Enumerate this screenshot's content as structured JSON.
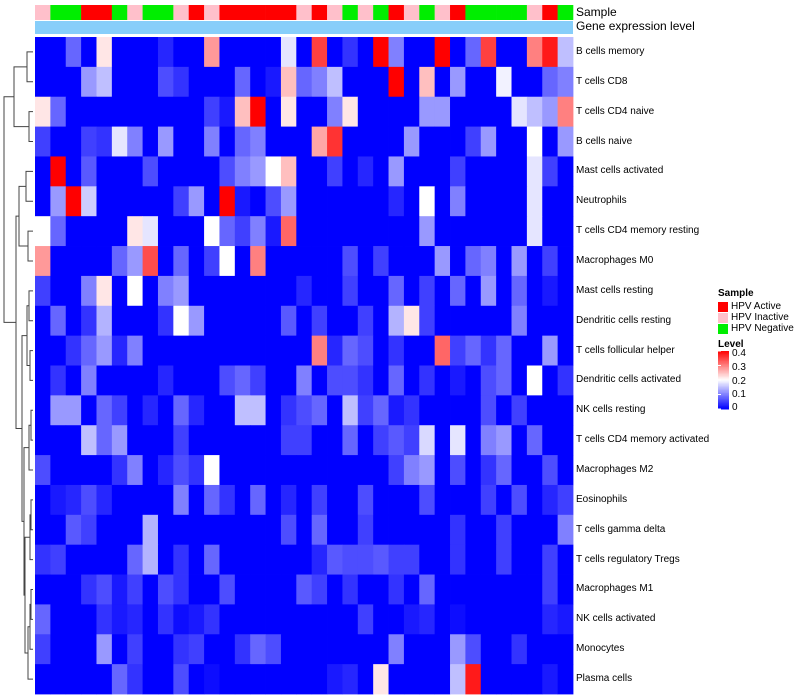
{
  "chart_data": {
    "type": "heatmap",
    "annotations": {
      "sample_label": "Sample",
      "gene_label": "Gene expression level"
    },
    "sample_legend": {
      "title": "Sample",
      "entries": [
        {
          "label": "HPV Active",
          "color": "#ff0000"
        },
        {
          "label": "HPV Inactive",
          "color": "#ffc0cb"
        },
        {
          "label": "HPV Negative",
          "color": "#00ee00"
        }
      ]
    },
    "level_legend": {
      "title": "Level",
      "ticks": [
        "0.4",
        "0.3",
        "0.2",
        "0.1",
        "0"
      ],
      "range": [
        0,
        0.4
      ],
      "colors": [
        "#0000ff",
        "#ffffff",
        "#ff0000"
      ]
    },
    "sample_groups": [
      "Inactive",
      "Negative",
      "Negative",
      "Active",
      "Active",
      "Negative",
      "Inactive",
      "Negative",
      "Negative",
      "Inactive",
      "Active",
      "Inactive",
      "Active",
      "Active",
      "Active",
      "Active",
      "Active",
      "Inactive",
      "Active",
      "Inactive",
      "Negative",
      "Inactive",
      "Negative",
      "Active",
      "Inactive",
      "Negative",
      "Inactive",
      "Active",
      "Negative",
      "Negative",
      "Negative",
      "Negative",
      "Inactive",
      "Active",
      "Negative"
    ],
    "rows": [
      {
        "name": "B cells memory",
        "values": [
          0,
          0,
          0.08,
          0,
          0.22,
          0,
          0,
          0,
          0.03,
          0,
          0,
          0.28,
          0,
          0,
          0,
          0,
          0.18,
          0,
          0.35,
          0,
          0.04,
          0,
          0.4,
          0.1,
          0,
          0,
          0.4,
          0,
          0.08,
          0.35,
          0,
          0,
          0.3,
          0.38,
          0.15
        ]
      },
      {
        "name": "T cells CD8",
        "values": [
          0,
          0,
          0,
          0.12,
          0.15,
          0,
          0,
          0,
          0.06,
          0.04,
          0,
          0,
          0,
          0.08,
          0,
          0.02,
          0.25,
          0.08,
          0.1,
          0.15,
          0,
          0,
          0,
          0.4,
          0,
          0.25,
          0,
          0.12,
          0,
          0,
          0.19,
          0,
          0,
          0.08,
          0.1
        ]
      },
      {
        "name": "T cells CD4 naive",
        "values": [
          0.22,
          0.08,
          0,
          0,
          0,
          0,
          0,
          0,
          0,
          0,
          0,
          0.05,
          0.02,
          0.25,
          0.4,
          0,
          0.22,
          0,
          0,
          0.1,
          0.22,
          0,
          0,
          0,
          0,
          0.12,
          0.12,
          0,
          0,
          0,
          0,
          0.18,
          0.15,
          0.12,
          0.3
        ]
      },
      {
        "name": "B cells naive",
        "values": [
          0.05,
          0,
          0,
          0.05,
          0.04,
          0.18,
          0.1,
          0,
          0.12,
          0,
          0,
          0.1,
          0,
          0.08,
          0.1,
          0,
          0,
          0,
          0.27,
          0.36,
          0,
          0,
          0,
          0,
          0.12,
          0,
          0,
          0,
          0.05,
          0.12,
          0,
          0,
          0.2,
          0,
          0.12
        ]
      },
      {
        "name": "Mast cells activated",
        "values": [
          0,
          0.4,
          0,
          0.07,
          0,
          0,
          0,
          0.06,
          0,
          0,
          0,
          0,
          0.06,
          0.1,
          0.12,
          0.2,
          0.25,
          0,
          0,
          0.05,
          0,
          0.03,
          0,
          0.12,
          0,
          0,
          0,
          0.05,
          0,
          0,
          0,
          0,
          0.18,
          0.05,
          0
        ]
      },
      {
        "name": "Neutrophils",
        "values": [
          0,
          0.12,
          0.4,
          0.16,
          0,
          0,
          0,
          0,
          0,
          0.05,
          0.12,
          0,
          0.4,
          0.02,
          0,
          0.06,
          0.12,
          0,
          0,
          0,
          0,
          0,
          0,
          0.03,
          0,
          0.2,
          0,
          0.1,
          0,
          0,
          0,
          0,
          0.18,
          0,
          0
        ]
      },
      {
        "name": "T cells CD4 memory resting",
        "values": [
          0.2,
          0.08,
          0,
          0,
          0,
          0,
          0.22,
          0.18,
          0,
          0,
          0,
          0.2,
          0.08,
          0.05,
          0.1,
          0.02,
          0.32,
          0,
          0,
          0,
          0,
          0,
          0,
          0,
          0,
          0.12,
          0,
          0,
          0,
          0,
          0,
          0,
          0.18,
          0,
          0
        ]
      },
      {
        "name": "Macrophages M0",
        "values": [
          0.28,
          0,
          0,
          0,
          0,
          0.08,
          0.12,
          0.34,
          0,
          0.08,
          0,
          0.05,
          0.2,
          0,
          0.3,
          0,
          0,
          0,
          0,
          0,
          0.06,
          0,
          0.05,
          0,
          0,
          0,
          0.12,
          0,
          0.08,
          0.1,
          0,
          0.12,
          0,
          0.05,
          0
        ]
      },
      {
        "name": "Mast cells resting",
        "values": [
          0.05,
          0,
          0,
          0.1,
          0.22,
          0,
          0.2,
          0,
          0.1,
          0.12,
          0,
          0,
          0,
          0,
          0,
          0,
          0,
          0.03,
          0,
          0,
          0.05,
          0,
          0,
          0.08,
          0,
          0.05,
          0,
          0.08,
          0,
          0.12,
          0,
          0.08,
          0,
          0.02,
          0
        ]
      },
      {
        "name": "Dendritic cells resting",
        "values": [
          0,
          0.08,
          0,
          0.04,
          0.14,
          0,
          0,
          0,
          0.04,
          0.2,
          0.12,
          0,
          0,
          0,
          0,
          0,
          0.07,
          0,
          0.05,
          0,
          0,
          0.05,
          0,
          0.14,
          0.22,
          0.05,
          0,
          0,
          0,
          0,
          0,
          0.1,
          0,
          0,
          0
        ]
      },
      {
        "name": "T cells follicular helper",
        "values": [
          0,
          0,
          0.04,
          0.08,
          0.12,
          0.03,
          0.1,
          0,
          0,
          0,
          0,
          0,
          0,
          0,
          0,
          0,
          0,
          0,
          0.3,
          0.03,
          0.08,
          0.06,
          0,
          0.04,
          0,
          0,
          0.32,
          0.05,
          0.08,
          0.04,
          0.08,
          0,
          0,
          0.12,
          0
        ]
      },
      {
        "name": "Dendritic cells activated",
        "values": [
          0,
          0.04,
          0,
          0.1,
          0,
          0,
          0,
          0,
          0.03,
          0,
          0,
          0,
          0.06,
          0.08,
          0.05,
          0,
          0,
          0.1,
          0,
          0.06,
          0.06,
          0.04,
          0,
          0.08,
          0,
          0.04,
          0,
          0.02,
          0,
          0.06,
          0.08,
          0,
          0.2,
          0,
          0.04
        ]
      },
      {
        "name": "NK cells resting",
        "values": [
          0,
          0.12,
          0.12,
          0,
          0.08,
          0.05,
          0,
          0.03,
          0,
          0.08,
          0.03,
          0,
          0,
          0.15,
          0.15,
          0,
          0.04,
          0.06,
          0.08,
          0,
          0.15,
          0.05,
          0.08,
          0.02,
          0.04,
          0,
          0,
          0,
          0,
          0.06,
          0,
          0.05,
          0,
          0,
          0
        ]
      },
      {
        "name": "T cells CD4 memory activated",
        "values": [
          0,
          0,
          0,
          0.15,
          0.08,
          0.12,
          0,
          0,
          0,
          0.05,
          0,
          0,
          0,
          0,
          0,
          0,
          0.05,
          0.05,
          0,
          0,
          0.08,
          0,
          0.05,
          0.07,
          0.05,
          0.17,
          0,
          0.18,
          0,
          0.1,
          0.12,
          0,
          0.08,
          0,
          0
        ]
      },
      {
        "name": "Macrophages M2",
        "values": [
          0.06,
          0,
          0,
          0,
          0,
          0.04,
          0.1,
          0,
          0.03,
          0.06,
          0.04,
          0.2,
          0,
          0,
          0,
          0,
          0,
          0,
          0,
          0,
          0,
          0,
          0,
          0.05,
          0.1,
          0.12,
          0,
          0.06,
          0,
          0.04,
          0.08,
          0,
          0,
          0.06,
          0
        ]
      },
      {
        "name": "Eosinophils",
        "values": [
          0,
          0.02,
          0.03,
          0.06,
          0.03,
          0,
          0,
          0,
          0,
          0.1,
          0,
          0.08,
          0.04,
          0,
          0.08,
          0,
          0.03,
          0,
          0.05,
          0,
          0,
          0.06,
          0,
          0,
          0,
          0.06,
          0,
          0,
          0,
          0.05,
          0,
          0.06,
          0,
          0.03,
          0.05
        ]
      },
      {
        "name": "T cells gamma delta",
        "values": [
          0,
          0,
          0.07,
          0.05,
          0,
          0,
          0,
          0.14,
          0,
          0,
          0,
          0,
          0,
          0,
          0,
          0,
          0.06,
          0,
          0.08,
          0,
          0,
          0.05,
          0,
          0,
          0,
          0,
          0,
          0.04,
          0,
          0,
          0.05,
          0,
          0,
          0,
          0.1
        ]
      },
      {
        "name": "T cells regulatory  Tregs",
        "values": [
          0.04,
          0.05,
          0,
          0,
          0,
          0,
          0.08,
          0.14,
          0,
          0.04,
          0,
          0.08,
          0,
          0,
          0,
          0,
          0,
          0,
          0.03,
          0.07,
          0.06,
          0.06,
          0.07,
          0.05,
          0.05,
          0,
          0,
          0.04,
          0,
          0,
          0.05,
          0,
          0,
          0.05,
          0
        ]
      },
      {
        "name": "Macrophages M1",
        "values": [
          0,
          0,
          0,
          0.04,
          0.06,
          0.02,
          0.05,
          0,
          0.06,
          0.04,
          0,
          0,
          0.06,
          0,
          0,
          0,
          0,
          0.07,
          0.05,
          0,
          0.04,
          0,
          0,
          0.04,
          0,
          0.08,
          0,
          0,
          0,
          0,
          0,
          0,
          0,
          0.05,
          0
        ]
      },
      {
        "name": "NK cells activated",
        "values": [
          0.08,
          0,
          0,
          0,
          0.04,
          0.02,
          0.03,
          0,
          0.04,
          0.01,
          0.02,
          0.04,
          0,
          0,
          0,
          0,
          0,
          0,
          0,
          0,
          0,
          0.05,
          0,
          0,
          0.02,
          0.03,
          0,
          0.01,
          0,
          0,
          0,
          0,
          0,
          0.03,
          0.02
        ]
      },
      {
        "name": "Monocytes",
        "values": [
          0.05,
          0,
          0,
          0,
          0.12,
          0,
          0.05,
          0,
          0,
          0.04,
          0.05,
          0,
          0,
          0.04,
          0.08,
          0.06,
          0,
          0,
          0,
          0,
          0,
          0,
          0,
          0.1,
          0,
          0,
          0,
          0.12,
          0.06,
          0,
          0,
          0.04,
          0,
          0,
          0
        ]
      },
      {
        "name": "Plasma cells",
        "values": [
          0,
          0,
          0,
          0,
          0,
          0.08,
          0.04,
          0,
          0,
          0.06,
          0,
          0.01,
          0,
          0,
          0,
          0,
          0,
          0,
          0,
          0.02,
          0.03,
          0,
          0.22,
          0,
          0,
          0,
          0,
          0.15,
          0.38,
          0,
          0,
          0,
          0,
          0.02,
          0
        ]
      }
    ]
  }
}
